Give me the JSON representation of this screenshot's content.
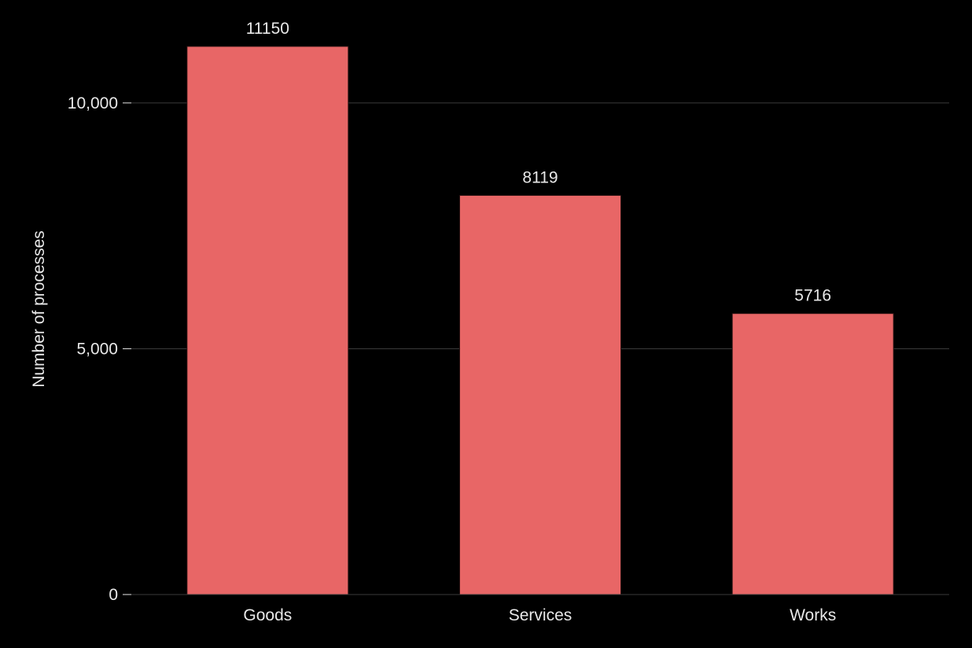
{
  "chart_data": {
    "type": "bar",
    "categories": [
      "Goods",
      "Services",
      "Works"
    ],
    "values": [
      11150,
      8119,
      5716
    ],
    "data_labels": [
      "11150",
      "8119",
      "5716"
    ],
    "title": "",
    "xlabel": "",
    "ylabel": "Number of processes",
    "ylim": [
      0,
      11150
    ],
    "yticks": [
      0,
      5000,
      10000
    ],
    "ytick_labels": [
      "0",
      "5,000",
      "10,000"
    ],
    "grid": true,
    "legend": "none",
    "colors": {
      "bar_fill": "#e86666",
      "bar_stroke": "#2a1212",
      "background": "#000000",
      "gridline": "#3a3a3a",
      "text": "#e8e8e8"
    }
  }
}
